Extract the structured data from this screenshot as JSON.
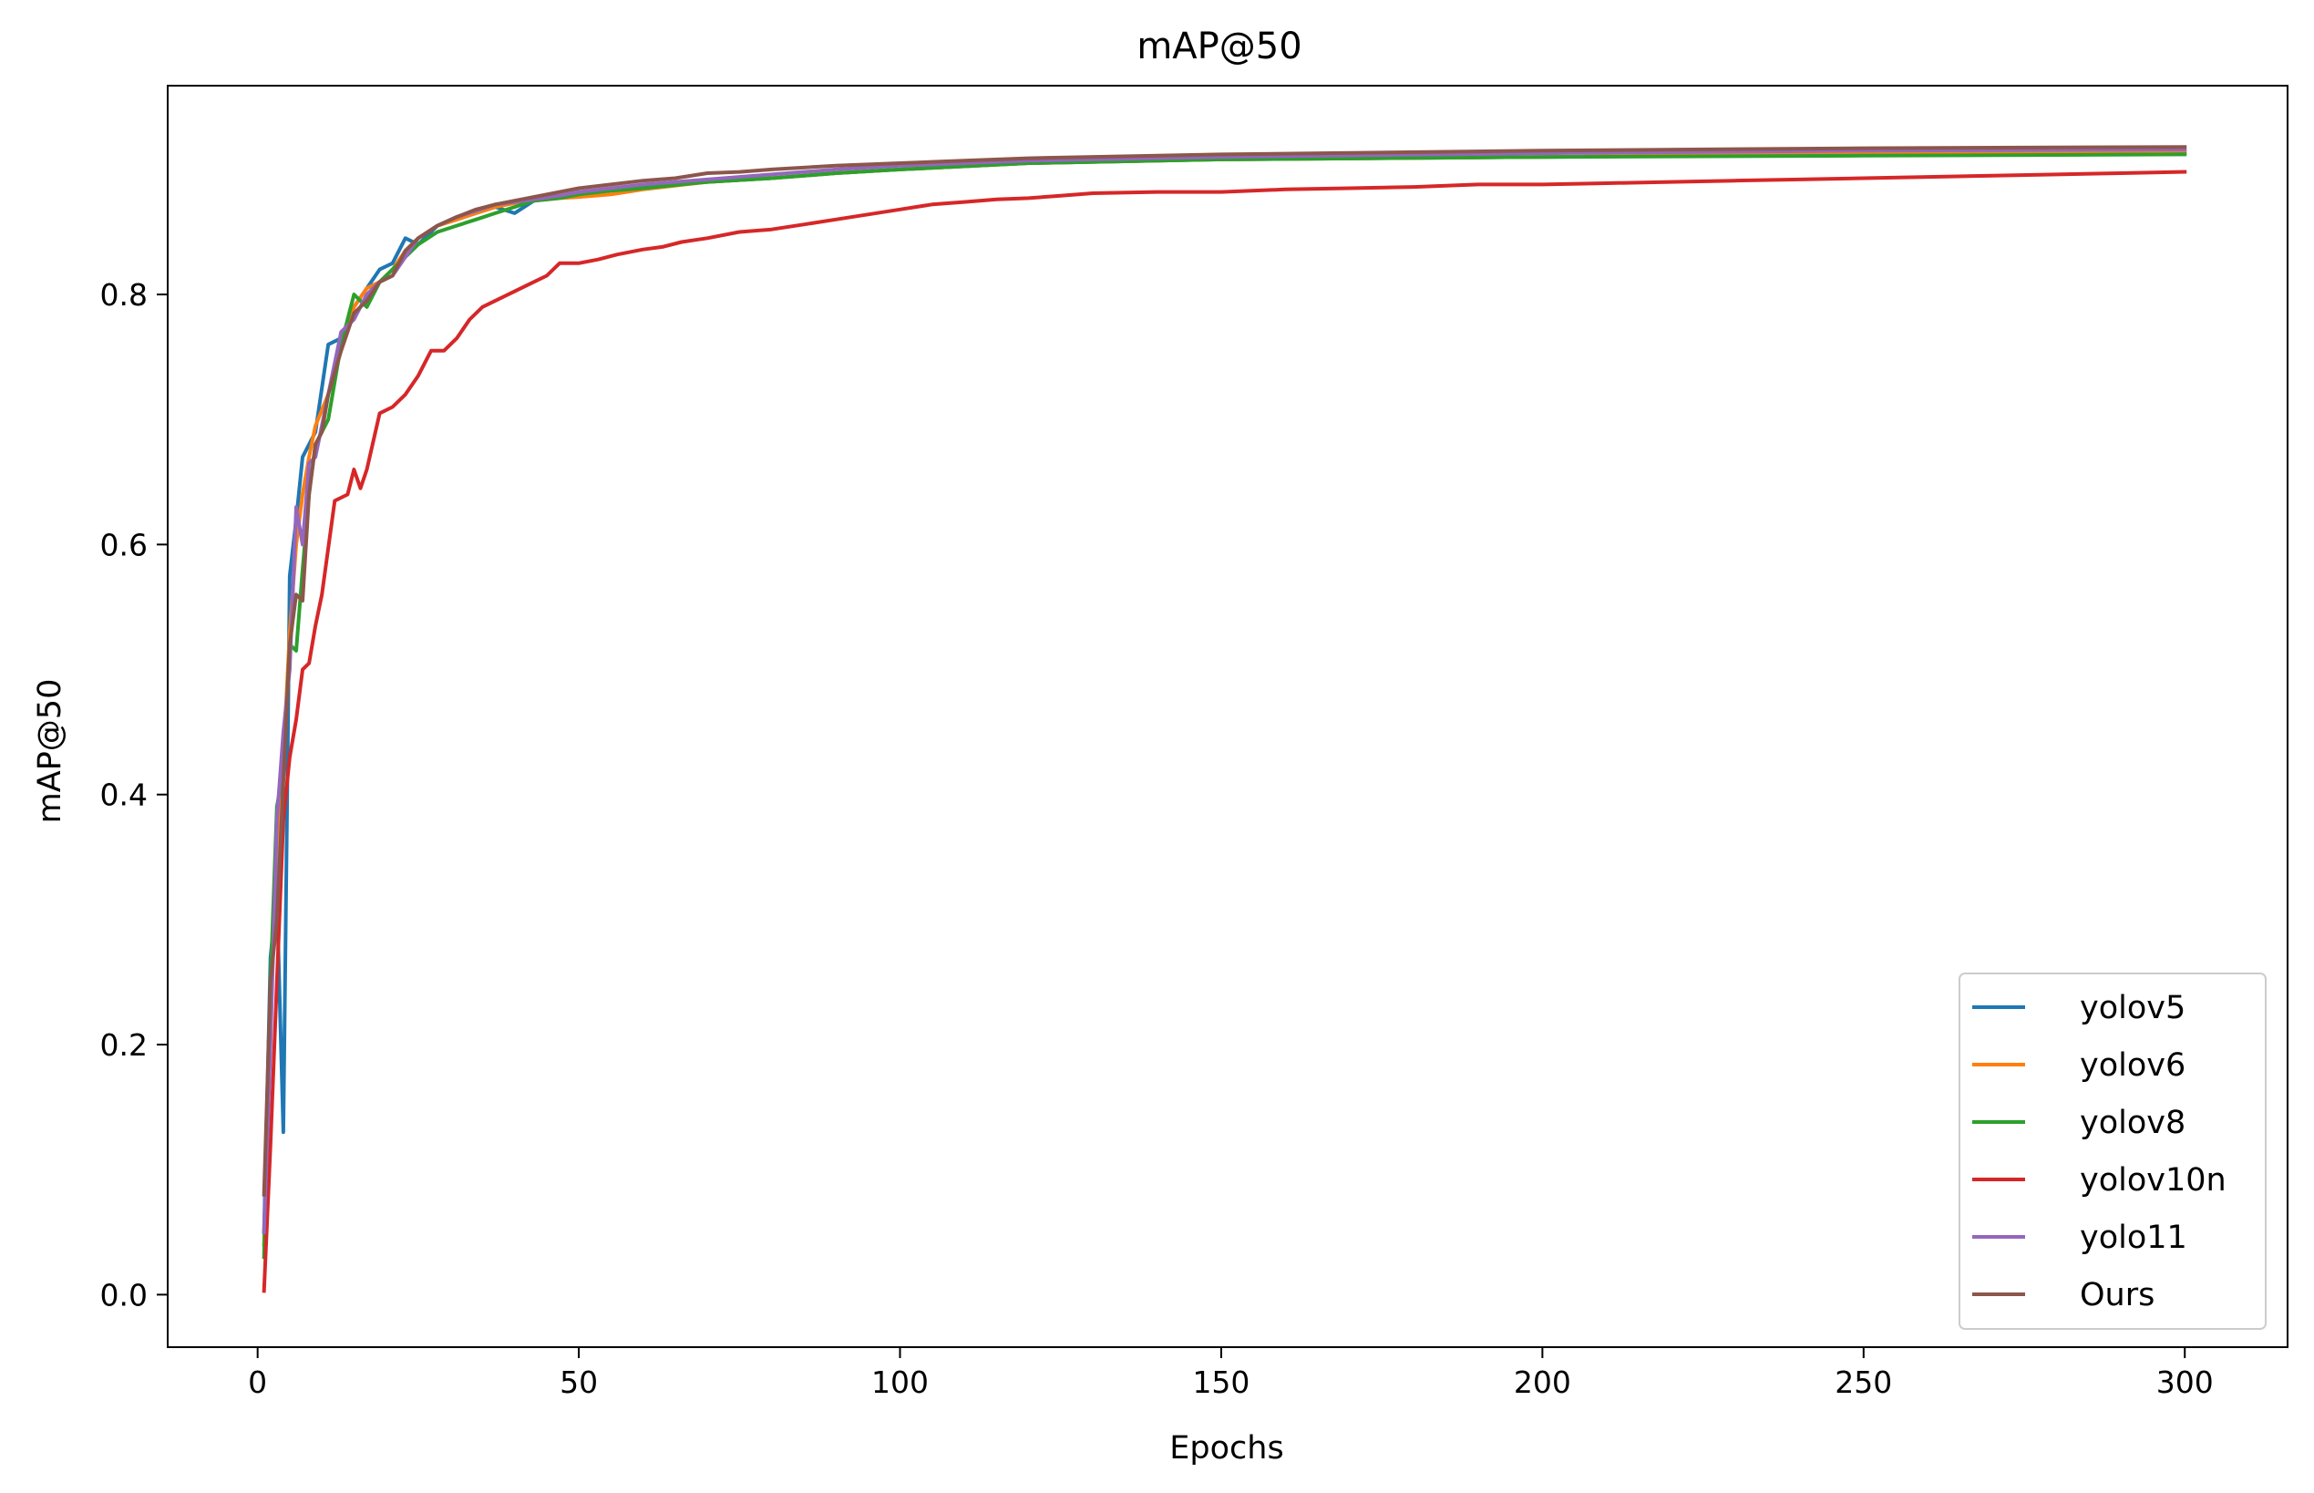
{
  "chart_data": {
    "type": "line",
    "title": "mAP@50",
    "xlabel": "Epochs",
    "ylabel": "mAP@50",
    "xlim": [
      -14,
      316
    ],
    "ylim": [
      -0.042,
      0.967
    ],
    "xticks": [
      0,
      50,
      100,
      150,
      200,
      250,
      300
    ],
    "xtick_labels": [
      "0",
      "50",
      "100",
      "150",
      "200",
      "250",
      "300"
    ],
    "yticks": [
      0.0,
      0.2,
      0.4,
      0.6,
      0.8
    ],
    "ytick_labels": [
      "0.0",
      "0.2",
      "0.4",
      "0.6",
      "0.8"
    ],
    "grid": false,
    "legend_position": "lower-right",
    "series": [
      {
        "name": "yolov5",
        "color": "#1f77b4",
        "points": [
          [
            1,
            0.05
          ],
          [
            2,
            0.27
          ],
          [
            3,
            0.32
          ],
          [
            4,
            0.13
          ],
          [
            5,
            0.575
          ],
          [
            6,
            0.62
          ],
          [
            7,
            0.67
          ],
          [
            9,
            0.69
          ],
          [
            11,
            0.76
          ],
          [
            13,
            0.765
          ],
          [
            15,
            0.79
          ],
          [
            17,
            0.805
          ],
          [
            19,
            0.82
          ],
          [
            21,
            0.825
          ],
          [
            23,
            0.845
          ],
          [
            25,
            0.84
          ],
          [
            28,
            0.855
          ],
          [
            31,
            0.86
          ],
          [
            34,
            0.865
          ],
          [
            37,
            0.87
          ],
          [
            40,
            0.865
          ],
          [
            43,
            0.875
          ],
          [
            47,
            0.878
          ],
          [
            50,
            0.88
          ],
          [
            55,
            0.883
          ],
          [
            60,
            0.886
          ],
          [
            70,
            0.89
          ],
          [
            80,
            0.893
          ],
          [
            90,
            0.897
          ],
          [
            100,
            0.9
          ],
          [
            120,
            0.905
          ],
          [
            150,
            0.908
          ],
          [
            200,
            0.91
          ],
          [
            250,
            0.912
          ],
          [
            300,
            0.913
          ]
        ]
      },
      {
        "name": "yolov6",
        "color": "#ff7f0e",
        "points": [
          [
            1,
            0.04
          ],
          [
            2,
            0.22
          ],
          [
            3,
            0.36
          ],
          [
            4,
            0.43
          ],
          [
            5,
            0.53
          ],
          [
            6,
            0.6
          ],
          [
            7,
            0.64
          ],
          [
            8,
            0.67
          ],
          [
            9,
            0.695
          ],
          [
            11,
            0.72
          ],
          [
            13,
            0.76
          ],
          [
            15,
            0.79
          ],
          [
            17,
            0.805
          ],
          [
            19,
            0.81
          ],
          [
            21,
            0.82
          ],
          [
            23,
            0.835
          ],
          [
            25,
            0.845
          ],
          [
            28,
            0.855
          ],
          [
            31,
            0.86
          ],
          [
            34,
            0.865
          ],
          [
            37,
            0.87
          ],
          [
            40,
            0.873
          ],
          [
            43,
            0.875
          ],
          [
            47,
            0.877
          ],
          [
            50,
            0.878
          ],
          [
            55,
            0.88
          ],
          [
            60,
            0.884
          ],
          [
            70,
            0.89
          ],
          [
            80,
            0.893
          ],
          [
            90,
            0.897
          ],
          [
            100,
            0.9
          ],
          [
            120,
            0.905
          ],
          [
            150,
            0.908
          ],
          [
            200,
            0.91
          ],
          [
            250,
            0.913
          ],
          [
            300,
            0.915
          ]
        ]
      },
      {
        "name": "yolov8",
        "color": "#2ca02c",
        "points": [
          [
            1,
            0.03
          ],
          [
            2,
            0.25
          ],
          [
            3,
            0.39
          ],
          [
            4,
            0.42
          ],
          [
            5,
            0.52
          ],
          [
            6,
            0.515
          ],
          [
            7,
            0.58
          ],
          [
            8,
            0.64
          ],
          [
            9,
            0.68
          ],
          [
            11,
            0.7
          ],
          [
            13,
            0.76
          ],
          [
            15,
            0.8
          ],
          [
            17,
            0.79
          ],
          [
            19,
            0.81
          ],
          [
            21,
            0.82
          ],
          [
            23,
            0.83
          ],
          [
            25,
            0.84
          ],
          [
            28,
            0.85
          ],
          [
            31,
            0.855
          ],
          [
            34,
            0.86
          ],
          [
            37,
            0.865
          ],
          [
            40,
            0.87
          ],
          [
            43,
            0.875
          ],
          [
            47,
            0.877
          ],
          [
            50,
            0.88
          ],
          [
            55,
            0.883
          ],
          [
            60,
            0.885
          ],
          [
            70,
            0.89
          ],
          [
            80,
            0.893
          ],
          [
            90,
            0.897
          ],
          [
            100,
            0.9
          ],
          [
            120,
            0.905
          ],
          [
            150,
            0.908
          ],
          [
            200,
            0.91
          ],
          [
            250,
            0.911
          ],
          [
            300,
            0.912
          ]
        ]
      },
      {
        "name": "yolov10n",
        "color": "#d62728",
        "points": [
          [
            1,
            0.003
          ],
          [
            2,
            0.12
          ],
          [
            3,
            0.25
          ],
          [
            4,
            0.38
          ],
          [
            5,
            0.43
          ],
          [
            6,
            0.46
          ],
          [
            7,
            0.5
          ],
          [
            8,
            0.505
          ],
          [
            9,
            0.535
          ],
          [
            10,
            0.56
          ],
          [
            12,
            0.635
          ],
          [
            14,
            0.64
          ],
          [
            15,
            0.66
          ],
          [
            16,
            0.645
          ],
          [
            17,
            0.66
          ],
          [
            19,
            0.705
          ],
          [
            21,
            0.71
          ],
          [
            23,
            0.72
          ],
          [
            25,
            0.735
          ],
          [
            27,
            0.755
          ],
          [
            29,
            0.755
          ],
          [
            31,
            0.765
          ],
          [
            33,
            0.78
          ],
          [
            35,
            0.79
          ],
          [
            37,
            0.795
          ],
          [
            39,
            0.8
          ],
          [
            41,
            0.805
          ],
          [
            43,
            0.81
          ],
          [
            45,
            0.815
          ],
          [
            47,
            0.825
          ],
          [
            50,
            0.825
          ],
          [
            53,
            0.828
          ],
          [
            56,
            0.832
          ],
          [
            60,
            0.836
          ],
          [
            63,
            0.838
          ],
          [
            66,
            0.842
          ],
          [
            70,
            0.845
          ],
          [
            75,
            0.85
          ],
          [
            80,
            0.852
          ],
          [
            85,
            0.856
          ],
          [
            90,
            0.86
          ],
          [
            95,
            0.864
          ],
          [
            100,
            0.868
          ],
          [
            105,
            0.872
          ],
          [
            110,
            0.874
          ],
          [
            115,
            0.876
          ],
          [
            120,
            0.877
          ],
          [
            125,
            0.879
          ],
          [
            130,
            0.881
          ],
          [
            140,
            0.882
          ],
          [
            150,
            0.882
          ],
          [
            160,
            0.884
          ],
          [
            170,
            0.885
          ],
          [
            180,
            0.886
          ],
          [
            190,
            0.888
          ],
          [
            200,
            0.888
          ],
          [
            210,
            0.889
          ],
          [
            220,
            0.89
          ],
          [
            230,
            0.891
          ],
          [
            240,
            0.892
          ],
          [
            250,
            0.893
          ],
          [
            260,
            0.894
          ],
          [
            270,
            0.895
          ],
          [
            280,
            0.896
          ],
          [
            290,
            0.897
          ],
          [
            300,
            0.898
          ]
        ]
      },
      {
        "name": "yolo11",
        "color": "#9467bd",
        "points": [
          [
            1,
            0.05
          ],
          [
            2,
            0.2
          ],
          [
            3,
            0.38
          ],
          [
            4,
            0.45
          ],
          [
            5,
            0.5
          ],
          [
            6,
            0.63
          ],
          [
            7,
            0.6
          ],
          [
            8,
            0.665
          ],
          [
            9,
            0.67
          ],
          [
            11,
            0.72
          ],
          [
            13,
            0.77
          ],
          [
            15,
            0.78
          ],
          [
            17,
            0.8
          ],
          [
            19,
            0.81
          ],
          [
            21,
            0.815
          ],
          [
            23,
            0.83
          ],
          [
            25,
            0.845
          ],
          [
            28,
            0.855
          ],
          [
            31,
            0.862
          ],
          [
            34,
            0.867
          ],
          [
            37,
            0.872
          ],
          [
            40,
            0.874
          ],
          [
            43,
            0.876
          ],
          [
            47,
            0.879
          ],
          [
            50,
            0.882
          ],
          [
            55,
            0.885
          ],
          [
            60,
            0.888
          ],
          [
            70,
            0.892
          ],
          [
            80,
            0.896
          ],
          [
            90,
            0.9
          ],
          [
            100,
            0.903
          ],
          [
            120,
            0.907
          ],
          [
            150,
            0.91
          ],
          [
            200,
            0.913
          ],
          [
            250,
            0.915
          ],
          [
            300,
            0.916
          ]
        ]
      },
      {
        "name": "Ours",
        "color": "#8c564b",
        "points": [
          [
            1,
            0.08
          ],
          [
            2,
            0.25
          ],
          [
            3,
            0.3
          ],
          [
            4,
            0.41
          ],
          [
            5,
            0.52
          ],
          [
            6,
            0.56
          ],
          [
            7,
            0.555
          ],
          [
            8,
            0.64
          ],
          [
            9,
            0.68
          ],
          [
            10,
            0.69
          ],
          [
            11,
            0.72
          ],
          [
            13,
            0.755
          ],
          [
            15,
            0.785
          ],
          [
            17,
            0.795
          ],
          [
            19,
            0.81
          ],
          [
            21,
            0.815
          ],
          [
            23,
            0.835
          ],
          [
            25,
            0.845
          ],
          [
            28,
            0.855
          ],
          [
            31,
            0.862
          ],
          [
            34,
            0.868
          ],
          [
            37,
            0.872
          ],
          [
            40,
            0.875
          ],
          [
            43,
            0.878
          ],
          [
            47,
            0.882
          ],
          [
            50,
            0.885
          ],
          [
            55,
            0.888
          ],
          [
            60,
            0.891
          ],
          [
            65,
            0.893
          ],
          [
            70,
            0.897
          ],
          [
            75,
            0.898
          ],
          [
            80,
            0.9
          ],
          [
            90,
            0.903
          ],
          [
            100,
            0.905
          ],
          [
            110,
            0.907
          ],
          [
            120,
            0.909
          ],
          [
            150,
            0.912
          ],
          [
            200,
            0.915
          ],
          [
            250,
            0.917
          ],
          [
            300,
            0.918
          ]
        ]
      }
    ]
  }
}
